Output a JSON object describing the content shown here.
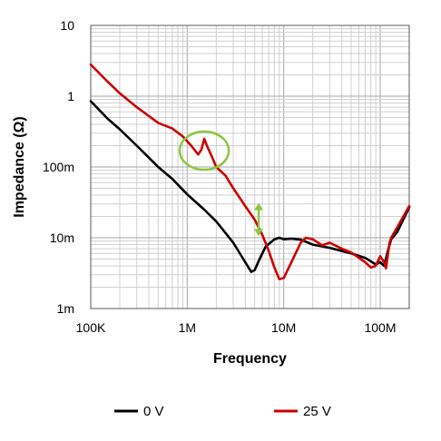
{
  "chart_data": {
    "type": "line",
    "xlabel": "Frequency",
    "ylabel": "Impedance (Ω)",
    "x_scale": "log",
    "y_scale": "log",
    "xlim": [
      100000,
      200000000
    ],
    "ylim": [
      0.001,
      10
    ],
    "grid": true,
    "legend_placement": "bottom",
    "x_ticks": [
      {
        "value": 100000,
        "label": "100K"
      },
      {
        "value": 1000000,
        "label": "1M"
      },
      {
        "value": 10000000,
        "label": "10M"
      },
      {
        "value": 100000000,
        "label": "100M"
      }
    ],
    "y_ticks": [
      {
        "value": 10,
        "label": "10"
      },
      {
        "value": 1,
        "label": "1"
      },
      {
        "value": 0.1,
        "label": "100m"
      },
      {
        "value": 0.01,
        "label": "10m"
      },
      {
        "value": 0.001,
        "label": "1m"
      }
    ],
    "series": [
      {
        "name": "0 V",
        "color": "#000000",
        "x": [
          100000,
          150000,
          200000,
          300000,
          500000,
          700000,
          1000000,
          1500000,
          2000000,
          3000000,
          4000000,
          4600000,
          5000000,
          5500000,
          6500000,
          8000000,
          9000000,
          10000000,
          12000000,
          15000000,
          20000000,
          30000000,
          50000000,
          70000000,
          90000000,
          100000000,
          110000000,
          120000000,
          130000000,
          150000000,
          200000000
        ],
        "y": [
          0.85,
          0.48,
          0.34,
          0.2,
          0.1,
          0.068,
          0.041,
          0.025,
          0.017,
          0.0085,
          0.0045,
          0.0033,
          0.0035,
          0.0047,
          0.0075,
          0.0095,
          0.01,
          0.0095,
          0.0097,
          0.0094,
          0.008,
          0.0072,
          0.006,
          0.0052,
          0.0042,
          0.0045,
          0.004,
          0.0065,
          0.0095,
          0.012,
          0.027
        ]
      },
      {
        "name": "25 V",
        "color": "#cc0000",
        "x": [
          100000,
          150000,
          200000,
          300000,
          500000,
          700000,
          900000,
          1100000,
          1300000,
          1400000,
          1500000,
          1600000,
          1800000,
          2000000,
          2500000,
          3000000,
          4000000,
          5000000,
          6000000,
          7000000,
          8000000,
          9000000,
          10000000,
          12000000,
          15000000,
          17000000,
          20000000,
          25000000,
          30000000,
          40000000,
          50000000,
          70000000,
          80000000,
          90000000,
          100000000,
          110000000,
          115000000,
          125000000,
          130000000,
          150000000,
          200000000
        ],
        "y": [
          2.8,
          1.6,
          1.1,
          0.7,
          0.42,
          0.35,
          0.27,
          0.2,
          0.15,
          0.175,
          0.25,
          0.2,
          0.14,
          0.1,
          0.075,
          0.05,
          0.028,
          0.018,
          0.011,
          0.0065,
          0.0038,
          0.0026,
          0.0027,
          0.0045,
          0.0085,
          0.01,
          0.0095,
          0.0078,
          0.0085,
          0.007,
          0.0062,
          0.0045,
          0.0038,
          0.004,
          0.0055,
          0.0045,
          0.0037,
          0.0085,
          0.01,
          0.014,
          0.028
        ]
      }
    ],
    "annotations": [
      {
        "type": "ellipse",
        "color": "#8dc63f",
        "cx": 1500000,
        "cy": 0.17,
        "note": ""
      },
      {
        "type": "double-arrow",
        "color": "#8dc63f",
        "x": 5500000,
        "y_from": 0.031,
        "y_to": 0.0105
      }
    ]
  }
}
